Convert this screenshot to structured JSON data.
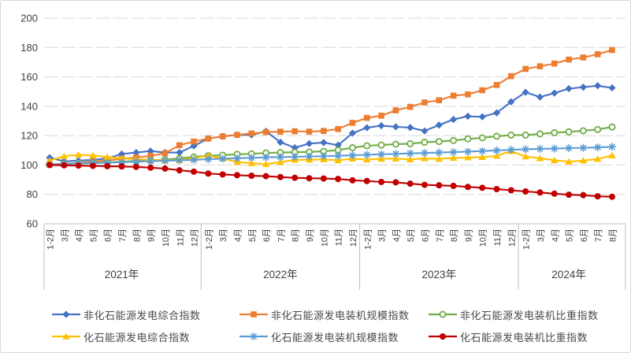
{
  "chart_data": {
    "type": "line",
    "title": "",
    "xlabel": "",
    "ylabel": "",
    "ylim": [
      60,
      200
    ],
    "yticks": [
      200,
      180,
      160,
      140,
      120,
      100,
      80,
      60
    ],
    "grid": "horizontal-dashed",
    "legend_position": "bottom",
    "x_groups": [
      {
        "year": "2021年",
        "months": [
          "1-2月",
          "3月",
          "4月",
          "5月",
          "6月",
          "7月",
          "8月",
          "9月",
          "10月",
          "11月",
          "12月"
        ]
      },
      {
        "year": "2022年",
        "months": [
          "1-2月",
          "3月",
          "4月",
          "5月",
          "6月",
          "7月",
          "8月",
          "9月",
          "10月",
          "11月",
          "12月"
        ]
      },
      {
        "year": "2023年",
        "months": [
          "1-2月",
          "3月",
          "4月",
          "5月",
          "6月",
          "7月",
          "8月",
          "9月",
          "10月",
          "11月",
          "12月"
        ]
      },
      {
        "year": "2024年",
        "months": [
          "1-2月",
          "3月",
          "4月",
          "5月",
          "6月",
          "7月",
          "8月"
        ]
      }
    ],
    "series": [
      {
        "name": "非化石能源发电综合指数",
        "color": "#4472C4",
        "marker": "diamond",
        "values": [
          105,
          102.5,
          103,
          103.5,
          104.5,
          107.5,
          108.5,
          109.5,
          108.5,
          108.5,
          113,
          118,
          119.5,
          120.5,
          120.5,
          123,
          115.5,
          111.8,
          114.6,
          115.3,
          113.5,
          121.7,
          125.4,
          126.8,
          126,
          125.5,
          123.2,
          127.2,
          131,
          133.2,
          132.8,
          135.5,
          143,
          149.5,
          146.3,
          149,
          152,
          153,
          154,
          152.5
        ]
      },
      {
        "name": "非化石能源发电装机规模指数",
        "color": "#ED7D31",
        "marker": "square",
        "values": [
          100.3,
          100.8,
          101.5,
          102.3,
          103.2,
          104.2,
          105.2,
          106.2,
          108,
          113.5,
          116,
          118,
          119.5,
          120.5,
          121.5,
          122.4,
          122.7,
          123,
          122.7,
          123.2,
          124.5,
          128.7,
          132.1,
          133.6,
          137.2,
          139.6,
          142.6,
          144.1,
          147.2,
          148.1,
          150.9,
          154.5,
          160.5,
          165.4,
          167.2,
          169.1,
          171.8,
          173.2,
          175.4,
          178.3
        ]
      },
      {
        "name": "非化石能源发电装机比重指数",
        "color": "#70AD47",
        "marker": "circle-open",
        "values": [
          100.5,
          100.8,
          101.1,
          101.4,
          101.8,
          102.3,
          102.8,
          103.2,
          103.7,
          104.5,
          105.5,
          106.4,
          106.7,
          107.3,
          107.6,
          108.2,
          108.5,
          108.7,
          108.9,
          109.3,
          110.2,
          111.8,
          113.1,
          113.6,
          114.2,
          114.5,
          115.5,
          116,
          116.7,
          117.8,
          118.5,
          119.6,
          120.4,
          120.4,
          121.2,
          122,
          122.6,
          123.3,
          124.2,
          125.9
        ]
      },
      {
        "name": "化石能源发电综合指数",
        "color": "#FFC000",
        "marker": "triangle",
        "values": [
          103,
          106,
          107,
          106.5,
          105.5,
          104.5,
          104,
          103.5,
          103.2,
          103.3,
          104.5,
          106.5,
          104.5,
          102,
          101.3,
          100.6,
          102,
          103.5,
          103.6,
          103.8,
          103.2,
          104.3,
          103.7,
          104.2,
          104.4,
          103.8,
          104.5,
          104.2,
          104.8,
          105.1,
          105.4,
          106.2,
          109.5,
          105.8,
          104.6,
          103.2,
          102.3,
          103,
          104.1,
          106.5
        ]
      },
      {
        "name": "化石能源发电装机规模指数",
        "color": "#5B9BD5",
        "marker": "asterisk",
        "values": [
          100.4,
          100.7,
          101,
          101.3,
          101.6,
          102,
          102.3,
          102.6,
          102.9,
          103.2,
          103.5,
          104,
          104.3,
          104.6,
          104.9,
          105.2,
          105.4,
          105.6,
          105.8,
          106,
          106.3,
          106.6,
          107,
          107.3,
          107.6,
          107.9,
          108.2,
          108.5,
          108.8,
          109.1,
          109.5,
          109.9,
          110.4,
          110.7,
          111,
          111.2,
          111.5,
          111.7,
          112,
          112.4
        ]
      },
      {
        "name": "化石能源发电装机比重指数",
        "color": "#C00000",
        "marker": "circle",
        "values": [
          100,
          99.8,
          99.6,
          99.4,
          99.2,
          99,
          98.7,
          98.2,
          97.6,
          96.4,
          95.5,
          94.2,
          93.6,
          93.1,
          92.7,
          92.4,
          91.8,
          91.3,
          91,
          90.8,
          90.5,
          89.6,
          89.1,
          88.5,
          88.2,
          87.3,
          86.5,
          86.2,
          85.8,
          85.1,
          84.5,
          83.6,
          82.8,
          82,
          81.3,
          80.5,
          79.8,
          79.5,
          78.7,
          78.4
        ]
      }
    ],
    "colors": {
      "gridline": "#d9d9d9",
      "axis_line": "#bfbfbf",
      "axis_text": "#404040",
      "legend_text": "#4a4a4a"
    }
  }
}
